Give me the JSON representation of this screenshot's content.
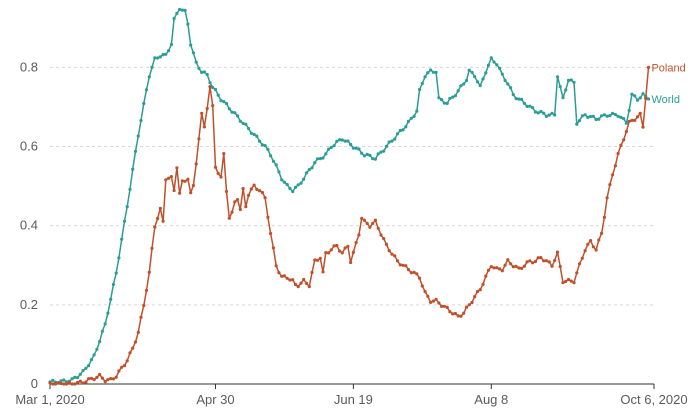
{
  "chart_data": {
    "type": "line",
    "x_tick_labels": [
      "Mar 1, 2020",
      "Apr 30",
      "Jun 19",
      "Aug 8",
      "Oct 6, 2020"
    ],
    "x_ticks_day": [
      0,
      60,
      110,
      160,
      219
    ],
    "y_tick_labels": [
      "0",
      "0.2",
      "0.4",
      "0.6",
      "0.8"
    ],
    "ylim": [
      0,
      0.95
    ],
    "xlim_day": [
      0,
      219
    ],
    "grid": "horizontal dashed",
    "colors": {
      "World": "#2a9d94",
      "Poland": "#c0502a",
      "axis": "#333333",
      "grid": "#d9d9d9"
    },
    "series": [
      {
        "name": "World",
        "points": [
          [
            0,
            0.005
          ],
          [
            4,
            0.006
          ],
          [
            8,
            0.01
          ],
          [
            12,
            0.03
          ],
          [
            16,
            0.07
          ],
          [
            20,
            0.15
          ],
          [
            24,
            0.28
          ],
          [
            28,
            0.45
          ],
          [
            32,
            0.63
          ],
          [
            36,
            0.78
          ],
          [
            38,
            0.82
          ],
          [
            40,
            0.83
          ],
          [
            42,
            0.83
          ],
          [
            44,
            0.86
          ],
          [
            45,
            0.92
          ],
          [
            47,
            0.95
          ],
          [
            49,
            0.94
          ],
          [
            50,
            0.91
          ],
          [
            51,
            0.86
          ],
          [
            53,
            0.81
          ],
          [
            55,
            0.79
          ],
          [
            57,
            0.78
          ],
          [
            59,
            0.75
          ],
          [
            62,
            0.72
          ],
          [
            66,
            0.69
          ],
          [
            70,
            0.66
          ],
          [
            74,
            0.63
          ],
          [
            78,
            0.6
          ],
          [
            80,
            0.58
          ],
          [
            82,
            0.55
          ],
          [
            84,
            0.52
          ],
          [
            86,
            0.5
          ],
          [
            88,
            0.49
          ],
          [
            90,
            0.5
          ],
          [
            92,
            0.52
          ],
          [
            94,
            0.54
          ],
          [
            96,
            0.56
          ],
          [
            98,
            0.57
          ],
          [
            100,
            0.58
          ],
          [
            102,
            0.6
          ],
          [
            104,
            0.61
          ],
          [
            106,
            0.62
          ],
          [
            108,
            0.61
          ],
          [
            110,
            0.6
          ],
          [
            114,
            0.58
          ],
          [
            118,
            0.57
          ],
          [
            122,
            0.6
          ],
          [
            126,
            0.63
          ],
          [
            130,
            0.66
          ],
          [
            133,
            0.69
          ],
          [
            134,
            0.74
          ],
          [
            136,
            0.78
          ],
          [
            138,
            0.79
          ],
          [
            140,
            0.79
          ],
          [
            141,
            0.72
          ],
          [
            144,
            0.71
          ],
          [
            148,
            0.74
          ],
          [
            151,
            0.77
          ],
          [
            152,
            0.79
          ],
          [
            154,
            0.78
          ],
          [
            156,
            0.75
          ],
          [
            158,
            0.79
          ],
          [
            160,
            0.82
          ],
          [
            162,
            0.81
          ],
          [
            164,
            0.78
          ],
          [
            166,
            0.76
          ],
          [
            168,
            0.73
          ],
          [
            172,
            0.71
          ],
          [
            176,
            0.69
          ],
          [
            180,
            0.68
          ],
          [
            183,
            0.68
          ],
          [
            184,
            0.78
          ],
          [
            186,
            0.72
          ],
          [
            188,
            0.77
          ],
          [
            190,
            0.76
          ],
          [
            191,
            0.66
          ],
          [
            194,
            0.68
          ],
          [
            198,
            0.67
          ],
          [
            202,
            0.68
          ],
          [
            206,
            0.68
          ],
          [
            209,
            0.66
          ],
          [
            211,
            0.73
          ],
          [
            213,
            0.72
          ],
          [
            215,
            0.73
          ],
          [
            217,
            0.72
          ]
        ]
      },
      {
        "name": "Poland",
        "points": [
          [
            0,
            0.0
          ],
          [
            4,
            0.0
          ],
          [
            8,
            0.0
          ],
          [
            12,
            0.005
          ],
          [
            16,
            0.015
          ],
          [
            18,
            0.02
          ],
          [
            20,
            0.01
          ],
          [
            22,
            0.01
          ],
          [
            24,
            0.02
          ],
          [
            26,
            0.04
          ],
          [
            28,
            0.06
          ],
          [
            30,
            0.09
          ],
          [
            32,
            0.13
          ],
          [
            34,
            0.2
          ],
          [
            36,
            0.28
          ],
          [
            38,
            0.4
          ],
          [
            40,
            0.44
          ],
          [
            41,
            0.41
          ],
          [
            42,
            0.52
          ],
          [
            44,
            0.52
          ],
          [
            45,
            0.49
          ],
          [
            46,
            0.55
          ],
          [
            47,
            0.48
          ],
          [
            48,
            0.51
          ],
          [
            50,
            0.52
          ],
          [
            51,
            0.48
          ],
          [
            52,
            0.5
          ],
          [
            53,
            0.56
          ],
          [
            55,
            0.68
          ],
          [
            56,
            0.65
          ],
          [
            58,
            0.75
          ],
          [
            59,
            0.7
          ],
          [
            60,
            0.55
          ],
          [
            62,
            0.52
          ],
          [
            63,
            0.58
          ],
          [
            64,
            0.49
          ],
          [
            65,
            0.42
          ],
          [
            66,
            0.43
          ],
          [
            67,
            0.46
          ],
          [
            68,
            0.47
          ],
          [
            69,
            0.44
          ],
          [
            70,
            0.49
          ],
          [
            71,
            0.45
          ],
          [
            72,
            0.48
          ],
          [
            74,
            0.5
          ],
          [
            76,
            0.49
          ],
          [
            78,
            0.47
          ],
          [
            80,
            0.38
          ],
          [
            82,
            0.3
          ],
          [
            84,
            0.27
          ],
          [
            86,
            0.27
          ],
          [
            88,
            0.26
          ],
          [
            89,
            0.25
          ],
          [
            90,
            0.25
          ],
          [
            92,
            0.26
          ],
          [
            94,
            0.25
          ],
          [
            96,
            0.31
          ],
          [
            98,
            0.32
          ],
          [
            99,
            0.28
          ],
          [
            100,
            0.33
          ],
          [
            102,
            0.34
          ],
          [
            104,
            0.35
          ],
          [
            106,
            0.33
          ],
          [
            108,
            0.35
          ],
          [
            109,
            0.31
          ],
          [
            110,
            0.33
          ],
          [
            112,
            0.38
          ],
          [
            113,
            0.42
          ],
          [
            114,
            0.41
          ],
          [
            116,
            0.4
          ],
          [
            118,
            0.41
          ],
          [
            120,
            0.38
          ],
          [
            122,
            0.35
          ],
          [
            124,
            0.33
          ],
          [
            126,
            0.31
          ],
          [
            128,
            0.3
          ],
          [
            130,
            0.29
          ],
          [
            132,
            0.28
          ],
          [
            134,
            0.27
          ],
          [
            136,
            0.23
          ],
          [
            138,
            0.21
          ],
          [
            140,
            0.21
          ],
          [
            142,
            0.2
          ],
          [
            144,
            0.19
          ],
          [
            146,
            0.18
          ],
          [
            148,
            0.17
          ],
          [
            150,
            0.18
          ],
          [
            152,
            0.2
          ],
          [
            154,
            0.22
          ],
          [
            156,
            0.24
          ],
          [
            158,
            0.27
          ],
          [
            160,
            0.3
          ],
          [
            162,
            0.29
          ],
          [
            164,
            0.29
          ],
          [
            166,
            0.31
          ],
          [
            168,
            0.3
          ],
          [
            170,
            0.29
          ],
          [
            172,
            0.3
          ],
          [
            174,
            0.31
          ],
          [
            176,
            0.31
          ],
          [
            178,
            0.32
          ],
          [
            180,
            0.31
          ],
          [
            182,
            0.3
          ],
          [
            184,
            0.33
          ],
          [
            186,
            0.26
          ],
          [
            188,
            0.26
          ],
          [
            190,
            0.26
          ],
          [
            192,
            0.3
          ],
          [
            194,
            0.34
          ],
          [
            196,
            0.36
          ],
          [
            198,
            0.34
          ],
          [
            200,
            0.38
          ],
          [
            202,
            0.47
          ],
          [
            204,
            0.53
          ],
          [
            206,
            0.58
          ],
          [
            208,
            0.62
          ],
          [
            210,
            0.66
          ],
          [
            212,
            0.67
          ],
          [
            214,
            0.68
          ],
          [
            215,
            0.65
          ],
          [
            217,
            0.8
          ]
        ]
      }
    ]
  }
}
